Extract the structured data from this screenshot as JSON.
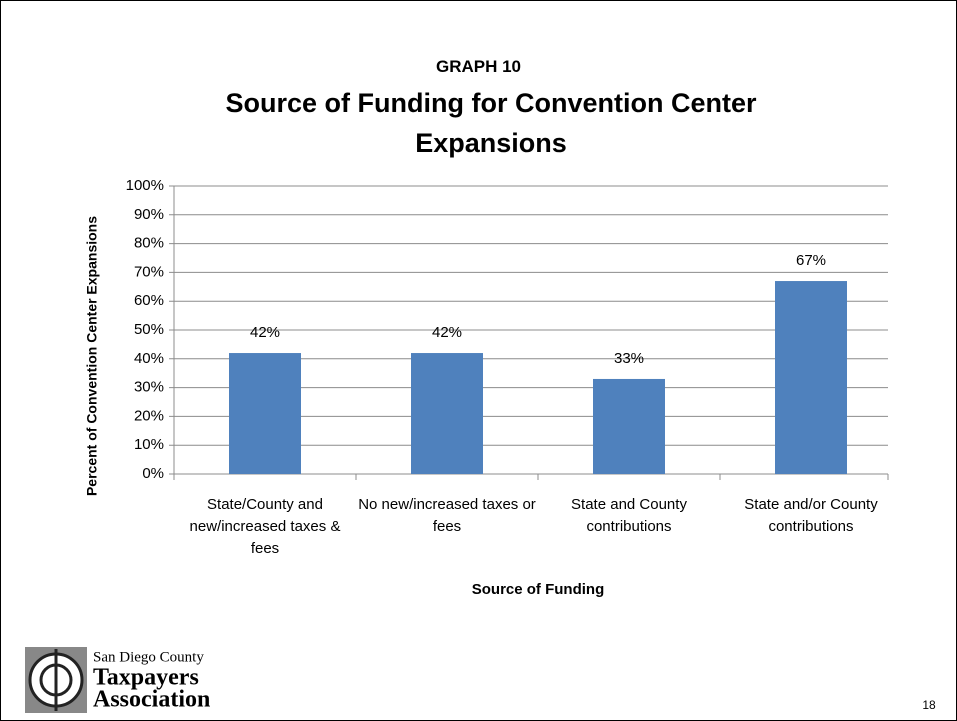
{
  "chart_data": {
    "type": "bar",
    "label": "GRAPH 10",
    "title": "Source of Funding for Convention Center Expansions",
    "x_label": "Source of Funding",
    "y_label": "Percent of Convention Center Expansions",
    "categories": [
      "State/County and new/increased taxes & fees",
      "No new/increased taxes or fees",
      "State and County contributions",
      "State and/or County contributions"
    ],
    "values": [
      42,
      42,
      33,
      67
    ],
    "value_labels": [
      "42%",
      "42%",
      "33%",
      "67%"
    ],
    "color": "#4f81bd",
    "ylim": [
      0,
      100
    ],
    "yticks": [
      {
        "value": 0,
        "label": "0%"
      },
      {
        "value": 10,
        "label": "10%"
      },
      {
        "value": 20,
        "label": "20%"
      },
      {
        "value": 30,
        "label": "30%"
      },
      {
        "value": 40,
        "label": "40%"
      },
      {
        "value": 50,
        "label": "50%"
      },
      {
        "value": 60,
        "label": "60%"
      },
      {
        "value": 70,
        "label": "70%"
      },
      {
        "value": 80,
        "label": "80%"
      },
      {
        "value": 90,
        "label": "90%"
      },
      {
        "value": 100,
        "label": "100%"
      }
    ],
    "grid": true
  },
  "footer": {
    "logo_lines": [
      "San Diego County",
      "Taxpayers",
      "Association"
    ],
    "page_number": "18"
  }
}
